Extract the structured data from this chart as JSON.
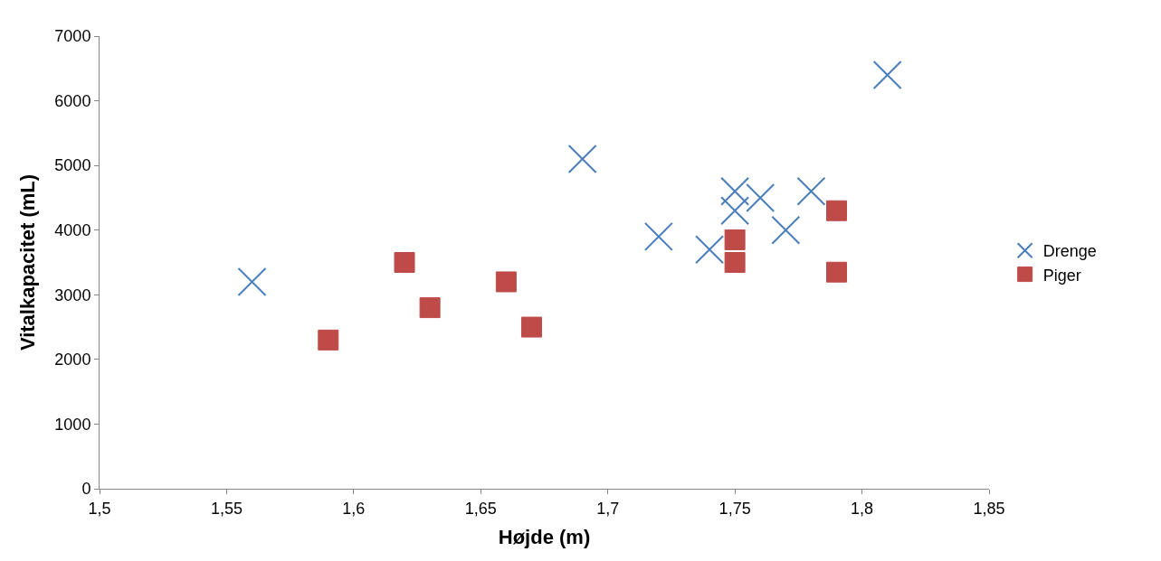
{
  "chart_data": {
    "type": "scatter",
    "xlabel": "Højde (m)",
    "ylabel": "Vitalkapacitet (mL)",
    "xlim": [
      1.5,
      1.85
    ],
    "xticks": [
      {
        "value": 1.5,
        "label": "1,5"
      },
      {
        "value": 1.55,
        "label": "1,55"
      },
      {
        "value": 1.6,
        "label": "1,6"
      },
      {
        "value": 1.65,
        "label": "1,65"
      },
      {
        "value": 1.7,
        "label": "1,7"
      },
      {
        "value": 1.75,
        "label": "1,75"
      },
      {
        "value": 1.8,
        "label": "1,8"
      },
      {
        "value": 1.85,
        "label": "1,85"
      }
    ],
    "ylim": [
      0,
      7000
    ],
    "yticks": [
      0,
      1000,
      2000,
      3000,
      4000,
      5000,
      6000,
      7000
    ],
    "grid": false,
    "legend": "right",
    "series": [
      {
        "name": "Drenge",
        "color": "#4a7ebb",
        "marker": "cross",
        "x": [
          1.56,
          1.69,
          1.72,
          1.74,
          1.75,
          1.75,
          1.76,
          1.77,
          1.78,
          1.81
        ],
        "values": [
          3200,
          5100,
          3900,
          3700,
          4600,
          4300,
          4500,
          4000,
          4600,
          6400
        ]
      },
      {
        "name": "Piger",
        "color": "#be4b48",
        "marker": "square",
        "x": [
          1.59,
          1.62,
          1.63,
          1.66,
          1.67,
          1.75,
          1.75,
          1.79,
          1.79
        ],
        "values": [
          2300,
          3500,
          2800,
          3200,
          2500,
          3850,
          3500,
          4300,
          3350
        ]
      }
    ]
  }
}
